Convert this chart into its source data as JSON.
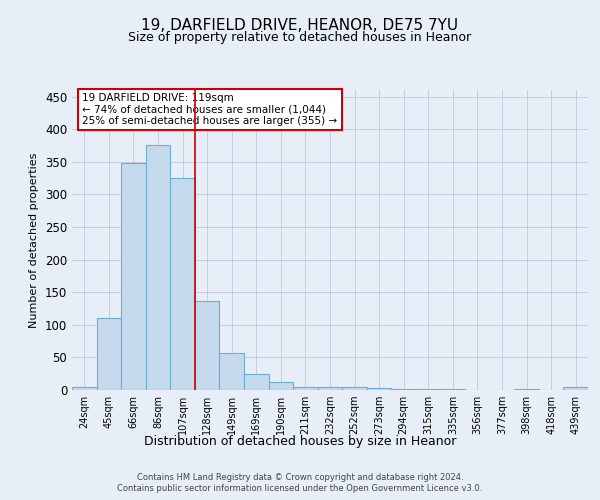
{
  "title1": "19, DARFIELD DRIVE, HEANOR, DE75 7YU",
  "title2": "Size of property relative to detached houses in Heanor",
  "xlabel": "Distribution of detached houses by size in Heanor",
  "ylabel": "Number of detached properties",
  "categories": [
    "24sqm",
    "45sqm",
    "66sqm",
    "86sqm",
    "107sqm",
    "128sqm",
    "149sqm",
    "169sqm",
    "190sqm",
    "211sqm",
    "232sqm",
    "252sqm",
    "273sqm",
    "294sqm",
    "315sqm",
    "335sqm",
    "356sqm",
    "377sqm",
    "398sqm",
    "418sqm",
    "439sqm"
  ],
  "values": [
    5,
    110,
    348,
    375,
    325,
    137,
    57,
    25,
    12,
    5,
    5,
    5,
    3,
    2,
    1,
    1,
    0,
    0,
    1,
    0,
    5
  ],
  "bar_color": "#c5d9ed",
  "bar_edge_color": "#6aaed6",
  "red_line_index": 5,
  "property_label": "19 DARFIELD DRIVE: 119sqm",
  "annotation_line1": "← 74% of detached houses are smaller (1,044)",
  "annotation_line2": "25% of semi-detached houses are larger (355) →",
  "ylim": [
    0,
    460
  ],
  "yticks": [
    0,
    50,
    100,
    150,
    200,
    250,
    300,
    350,
    400,
    450
  ],
  "background_color": "#e8eef7",
  "plot_background": "#e8eef7",
  "footer1": "Contains HM Land Registry data © Crown copyright and database right 2024.",
  "footer2": "Contains public sector information licensed under the Open Government Licence v3.0.",
  "title1_fontsize": 11,
  "title2_fontsize": 9,
  "tick_fontsize": 7,
  "ylabel_fontsize": 8,
  "xlabel_fontsize": 9,
  "footer_fontsize": 6,
  "annot_fontsize": 7.5
}
